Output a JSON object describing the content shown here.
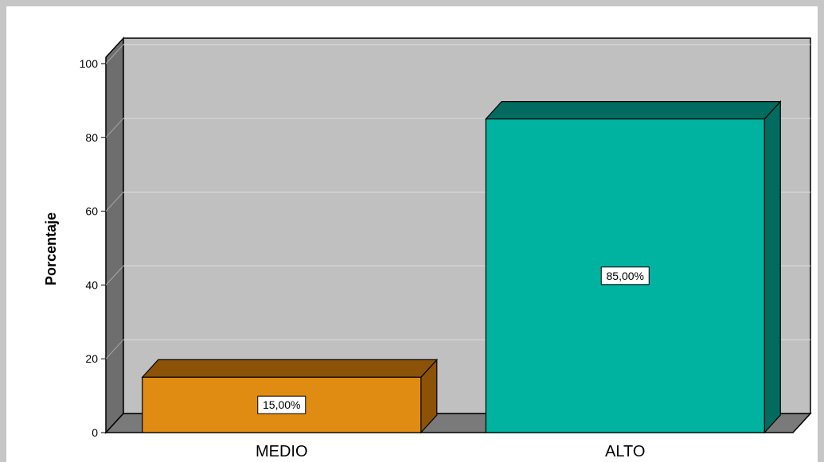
{
  "chart_data": {
    "type": "bar",
    "style": "3d",
    "categories": [
      "MEDIO",
      "ALTO"
    ],
    "values": [
      15,
      85
    ],
    "data_labels": [
      "15,00%",
      "85,00%"
    ],
    "ylabel": "Porcentaje",
    "xlabel": "",
    "ylim": [
      0,
      100
    ],
    "yticks": [
      "0",
      "20",
      "40",
      "60",
      "80",
      "100"
    ],
    "grid": true,
    "legend": "none",
    "colors": {
      "MEDIO": "#e08c12",
      "ALTO": "#00b2a0",
      "plot_background": "#c0c0c0"
    }
  }
}
